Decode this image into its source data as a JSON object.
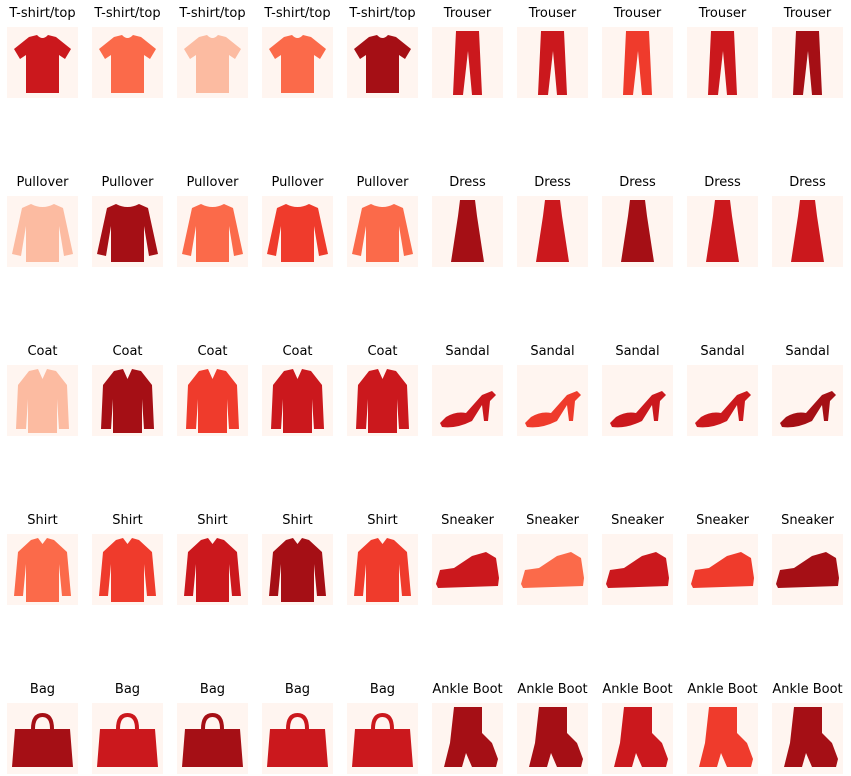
{
  "palette": {
    "background": "#fff5f0",
    "light": "#fcbba1",
    "mid": "#fb6a4a",
    "strong": "#ef3b2c",
    "dark": "#cb181d",
    "darkest": "#a50f15"
  },
  "rows": [
    {
      "category_icon": "tshirt-icon",
      "items": [
        {
          "title": "T-shirt/top",
          "tone": "dark"
        },
        {
          "title": "T-shirt/top",
          "tone": "mid"
        },
        {
          "title": "T-shirt/top",
          "tone": "light"
        },
        {
          "title": "T-shirt/top",
          "tone": "mid"
        },
        {
          "title": "T-shirt/top",
          "tone": "darkest"
        },
        {
          "title": "Trouser",
          "tone": "dark",
          "icon": "trouser-icon"
        },
        {
          "title": "Trouser",
          "tone": "dark",
          "icon": "trouser-icon"
        },
        {
          "title": "Trouser",
          "tone": "strong",
          "icon": "trouser-icon"
        },
        {
          "title": "Trouser",
          "tone": "dark",
          "icon": "trouser-icon"
        },
        {
          "title": "Trouser",
          "tone": "darkest",
          "icon": "trouser-icon"
        }
      ]
    },
    {
      "category_icon": "pullover-icon",
      "items": [
        {
          "title": "Pullover",
          "tone": "light"
        },
        {
          "title": "Pullover",
          "tone": "darkest"
        },
        {
          "title": "Pullover",
          "tone": "mid"
        },
        {
          "title": "Pullover",
          "tone": "strong"
        },
        {
          "title": "Pullover",
          "tone": "mid"
        },
        {
          "title": "Dress",
          "tone": "darkest",
          "icon": "dress-icon"
        },
        {
          "title": "Dress",
          "tone": "dark",
          "icon": "dress-icon"
        },
        {
          "title": "Dress",
          "tone": "darkest",
          "icon": "dress-icon"
        },
        {
          "title": "Dress",
          "tone": "dark",
          "icon": "dress-icon"
        },
        {
          "title": "Dress",
          "tone": "dark",
          "icon": "dress-icon"
        }
      ]
    },
    {
      "category_icon": "coat-icon",
      "items": [
        {
          "title": "Coat",
          "tone": "light"
        },
        {
          "title": "Coat",
          "tone": "darkest"
        },
        {
          "title": "Coat",
          "tone": "strong"
        },
        {
          "title": "Coat",
          "tone": "dark"
        },
        {
          "title": "Coat",
          "tone": "dark"
        },
        {
          "title": "Sandal",
          "tone": "dark",
          "icon": "sandal-icon"
        },
        {
          "title": "Sandal",
          "tone": "strong",
          "icon": "sandal-icon"
        },
        {
          "title": "Sandal",
          "tone": "dark",
          "icon": "sandal-icon"
        },
        {
          "title": "Sandal",
          "tone": "dark",
          "icon": "sandal-icon"
        },
        {
          "title": "Sandal",
          "tone": "darkest",
          "icon": "sandal-icon"
        }
      ]
    },
    {
      "category_icon": "shirt-icon",
      "items": [
        {
          "title": "Shirt",
          "tone": "mid"
        },
        {
          "title": "Shirt",
          "tone": "strong"
        },
        {
          "title": "Shirt",
          "tone": "dark"
        },
        {
          "title": "Shirt",
          "tone": "darkest"
        },
        {
          "title": "Shirt",
          "tone": "strong"
        },
        {
          "title": "Sneaker",
          "tone": "dark",
          "icon": "sneaker-icon"
        },
        {
          "title": "Sneaker",
          "tone": "mid",
          "icon": "sneaker-icon"
        },
        {
          "title": "Sneaker",
          "tone": "dark",
          "icon": "sneaker-icon"
        },
        {
          "title": "Sneaker",
          "tone": "strong",
          "icon": "sneaker-icon"
        },
        {
          "title": "Sneaker",
          "tone": "darkest",
          "icon": "sneaker-icon"
        }
      ]
    },
    {
      "category_icon": "bag-icon",
      "items": [
        {
          "title": "Bag",
          "tone": "darkest"
        },
        {
          "title": "Bag",
          "tone": "dark"
        },
        {
          "title": "Bag",
          "tone": "darkest"
        },
        {
          "title": "Bag",
          "tone": "dark"
        },
        {
          "title": "Bag",
          "tone": "dark"
        },
        {
          "title": "Ankle Boot",
          "tone": "darkest",
          "icon": "ankle-boot-icon"
        },
        {
          "title": "Ankle Boot",
          "tone": "darkest",
          "icon": "ankle-boot-icon"
        },
        {
          "title": "Ankle Boot",
          "tone": "dark",
          "icon": "ankle-boot-icon"
        },
        {
          "title": "Ankle Boot",
          "tone": "strong",
          "icon": "ankle-boot-icon"
        },
        {
          "title": "Ankle Boot",
          "tone": "darkest",
          "icon": "ankle-boot-icon"
        }
      ]
    }
  ]
}
